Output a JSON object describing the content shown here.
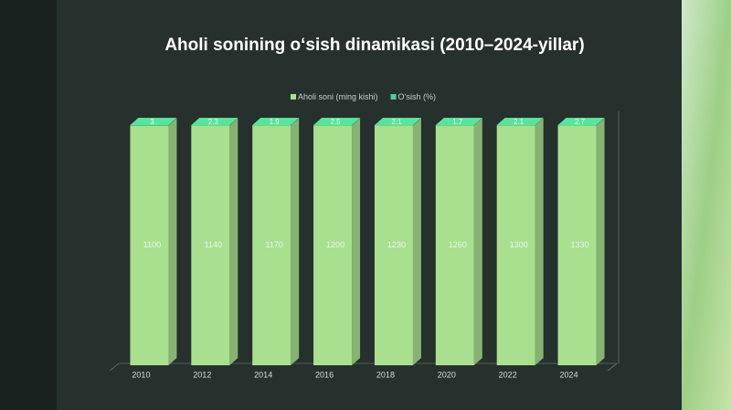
{
  "chart_data": {
    "type": "bar",
    "stacking": "percent",
    "three_d": true,
    "title": "Aholi sonining o‘sish dinamikasi (2010–2024-yillar)",
    "categories": [
      "2010",
      "2012",
      "2014",
      "2016",
      "2018",
      "2020",
      "2022",
      "2024"
    ],
    "series": [
      {
        "name": "Aholi soni (ming kishi)",
        "color": "#a8e08f",
        "values": [
          1100,
          1140,
          1170,
          1200,
          1230,
          1260,
          1300,
          1330
        ]
      },
      {
        "name": "O‘sish (%)",
        "color": "#4fcf8f",
        "values": [
          3,
          2.3,
          1.9,
          2.5,
          2.1,
          1.7,
          2.1,
          2.7
        ]
      }
    ],
    "legend": "top"
  }
}
